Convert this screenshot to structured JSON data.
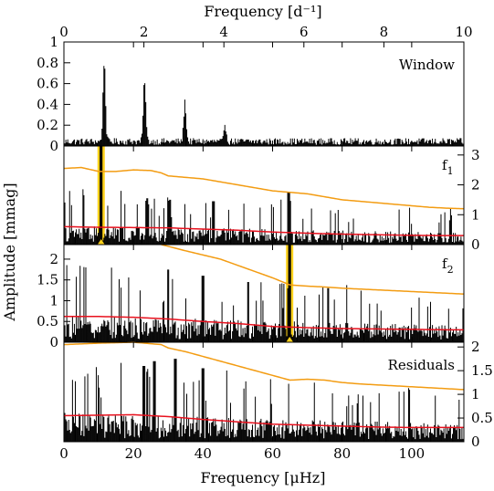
{
  "chart_data": [
    {
      "panel": "window",
      "type": "line",
      "label": "Window",
      "ylim": [
        0,
        1.0
      ],
      "yticks_left": [
        "0",
        "0.2",
        "0.4",
        "0.6",
        "0.8",
        "1"
      ],
      "xlim_uhz": [
        0,
        115
      ],
      "peaks_x": [
        11.6,
        23.2,
        34.8,
        46.4
      ],
      "peaks_y": [
        0.78,
        0.6,
        0.38,
        0.14
      ],
      "baseline_y": 0.04
    },
    {
      "panel": "f1",
      "type": "line",
      "label": "f",
      "label_sub": "1",
      "ylim": [
        0,
        3.3
      ],
      "yticks_right": [
        "0",
        "1",
        "2",
        "3"
      ],
      "highlight_x": 10.7,
      "highlight_peak_y": 3.3,
      "orange_x": [
        0,
        5,
        10,
        15,
        20,
        25,
        28,
        30,
        35,
        40,
        45,
        50,
        55,
        60,
        65,
        70,
        75,
        80,
        85,
        90,
        95,
        100,
        105,
        110,
        115
      ],
      "orange_y": [
        2.55,
        2.58,
        2.45,
        2.45,
        2.5,
        2.48,
        2.4,
        2.3,
        2.25,
        2.2,
        2.1,
        2.0,
        1.9,
        1.8,
        1.75,
        1.7,
        1.6,
        1.5,
        1.45,
        1.4,
        1.35,
        1.3,
        1.25,
        1.22,
        1.2
      ],
      "red_x": [
        0,
        10,
        20,
        30,
        40,
        50,
        60,
        70,
        80,
        90,
        100,
        110,
        115
      ],
      "red_y": [
        0.6,
        0.58,
        0.57,
        0.56,
        0.52,
        0.48,
        0.42,
        0.38,
        0.35,
        0.33,
        0.31,
        0.3,
        0.3
      ],
      "noise_level": 0.35,
      "peaks": [
        {
          "x": 64.6,
          "y": 1.75
        },
        {
          "x": 30.5,
          "y": 1.5
        },
        {
          "x": 24.0,
          "y": 1.55
        },
        {
          "x": 43.0,
          "y": 1.45
        }
      ]
    },
    {
      "panel": "f2",
      "type": "line",
      "label": "f",
      "label_sub": "2",
      "ylim": [
        0,
        2.35
      ],
      "yticks_left": [
        "0",
        "0.5",
        "1",
        "1.5",
        "2"
      ],
      "highlight_x": 64.9,
      "highlight_peak_y": 2.35,
      "orange_x": [
        28,
        35,
        40,
        45,
        50,
        55,
        60,
        65,
        70,
        75,
        80,
        85,
        90,
        95,
        100,
        105,
        110,
        115
      ],
      "orange_y": [
        2.35,
        2.2,
        2.1,
        2.0,
        1.85,
        1.7,
        1.55,
        1.38,
        1.35,
        1.33,
        1.3,
        1.28,
        1.26,
        1.24,
        1.22,
        1.2,
        1.18,
        1.16
      ],
      "red_x": [
        0,
        10,
        20,
        30,
        40,
        50,
        60,
        70,
        80,
        90,
        100,
        110,
        115
      ],
      "red_y": [
        0.62,
        0.62,
        0.6,
        0.56,
        0.5,
        0.45,
        0.38,
        0.35,
        0.33,
        0.32,
        0.31,
        0.3,
        0.3
      ],
      "noise_level": 0.35,
      "peaks": [
        {
          "x": 30.0,
          "y": 1.75
        },
        {
          "x": 40.0,
          "y": 1.6
        },
        {
          "x": 53.0,
          "y": 1.45
        },
        {
          "x": 76.0,
          "y": 1.3
        }
      ]
    },
    {
      "panel": "residuals",
      "type": "line",
      "label": "Residuals",
      "ylim": [
        0,
        2.1
      ],
      "yticks_right": [
        "0",
        "0.5",
        "1",
        "1.5",
        "2"
      ],
      "orange_x": [
        0,
        10,
        20,
        28,
        30,
        35,
        40,
        45,
        50,
        55,
        60,
        65,
        70,
        75,
        80,
        85,
        90,
        95,
        100,
        105,
        110,
        115
      ],
      "orange_y": [
        2.05,
        2.08,
        2.1,
        2.05,
        1.98,
        1.9,
        1.8,
        1.7,
        1.6,
        1.5,
        1.4,
        1.3,
        1.32,
        1.3,
        1.25,
        1.22,
        1.2,
        1.18,
        1.16,
        1.14,
        1.12,
        1.1
      ],
      "red_x": [
        0,
        10,
        20,
        30,
        40,
        50,
        60,
        70,
        80,
        90,
        100,
        110,
        115
      ],
      "red_y": [
        0.55,
        0.56,
        0.57,
        0.53,
        0.47,
        0.42,
        0.37,
        0.35,
        0.33,
        0.31,
        0.3,
        0.3,
        0.3
      ],
      "noise_level": 0.33,
      "peaks": [
        {
          "x": 32.0,
          "y": 1.75
        },
        {
          "x": 26.0,
          "y": 1.7
        },
        {
          "x": 40.0,
          "y": 1.55
        },
        {
          "x": 23.0,
          "y": 1.6
        }
      ]
    }
  ],
  "axes": {
    "top_title": "Frequency [d⁻¹]",
    "top_ticks": [
      "0",
      "2",
      "4",
      "6",
      "8",
      "10"
    ],
    "top_tick_values": [
      0,
      2,
      4,
      6,
      8,
      10
    ],
    "bottom_title": "Frequency [μHz]",
    "bottom_ticks": [
      "0",
      "20",
      "40",
      "60",
      "80",
      "100"
    ],
    "bottom_tick_values": [
      0,
      20,
      40,
      60,
      80,
      100
    ],
    "ylabel": "Amplitude [mmag]",
    "xlim_uhz": [
      0,
      115
    ],
    "xlim_cd": [
      0,
      10
    ]
  },
  "colors": {
    "data": "#000000",
    "orange": "#f39c12",
    "red": "#e8101d",
    "highlight": "#ffd21a"
  }
}
